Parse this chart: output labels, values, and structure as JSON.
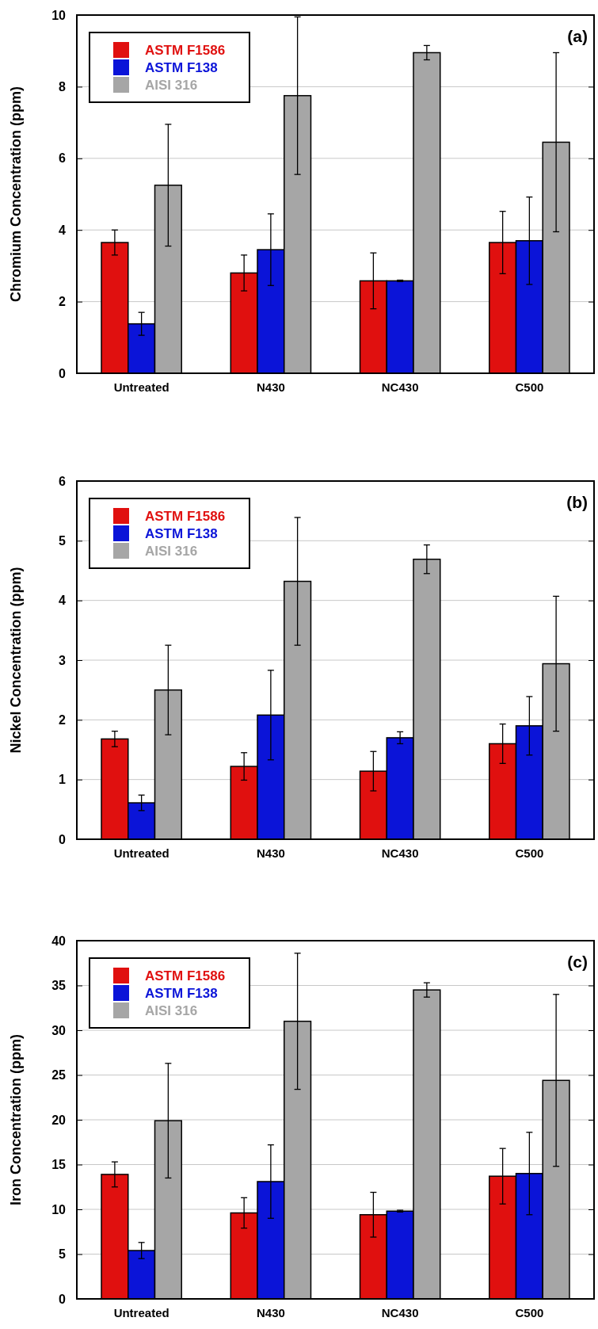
{
  "chart_data": [
    {
      "type": "bar",
      "ylabel": "Chromium Concentration (ppm)",
      "annotations": [
        "(a)"
      ],
      "categories": [
        "Untreated",
        "N430",
        "NC430",
        "C500"
      ],
      "ylim": [
        0,
        10
      ],
      "yticks": [
        0,
        2,
        4,
        6,
        8,
        10
      ],
      "grid": "y",
      "legend": "top left",
      "series": [
        {
          "name": "ASTM F1586",
          "color": "#e0100f",
          "values": [
            3.65,
            2.8,
            2.58,
            3.65
          ],
          "errors": [
            0.35,
            0.5,
            0.78,
            0.87
          ]
        },
        {
          "name": "ASTM F138",
          "color": "#0b14d8",
          "values": [
            1.38,
            3.45,
            2.58,
            3.7
          ],
          "errors": [
            0.32,
            1.0,
            0.02,
            1.22
          ]
        },
        {
          "name": "AISI 316",
          "color": "#a6a6a6",
          "values": [
            5.25,
            7.75,
            8.95,
            6.45
          ],
          "errors": [
            1.7,
            2.2,
            0.2,
            2.5
          ]
        }
      ]
    },
    {
      "type": "bar",
      "ylabel": "Nickel Concentration (ppm)",
      "annotations": [
        "(b)"
      ],
      "categories": [
        "Untreated",
        "N430",
        "NC430",
        "C500"
      ],
      "ylim": [
        0,
        6
      ],
      "yticks": [
        0,
        1,
        2,
        3,
        4,
        5,
        6
      ],
      "grid": "y",
      "legend": "top left",
      "series": [
        {
          "name": "ASTM F1586",
          "color": "#e0100f",
          "values": [
            1.68,
            1.22,
            1.14,
            1.6
          ],
          "errors": [
            0.13,
            0.23,
            0.33,
            0.33
          ]
        },
        {
          "name": "ASTM F138",
          "color": "#0b14d8",
          "values": [
            0.61,
            2.08,
            1.7,
            1.9
          ],
          "errors": [
            0.13,
            0.75,
            0.1,
            0.49
          ]
        },
        {
          "name": "AISI 316",
          "color": "#a6a6a6",
          "values": [
            2.5,
            4.32,
            4.69,
            2.94
          ],
          "errors": [
            0.75,
            1.07,
            0.24,
            1.13
          ]
        }
      ]
    },
    {
      "type": "bar",
      "ylabel": "Iron Concentration (ppm)",
      "annotations": [
        "(c)"
      ],
      "categories": [
        "Untreated",
        "N430",
        "NC430",
        "C500"
      ],
      "ylim": [
        0,
        40
      ],
      "yticks": [
        0,
        5,
        10,
        15,
        20,
        25,
        30,
        35,
        40
      ],
      "grid": "y",
      "legend": "top left",
      "series": [
        {
          "name": "ASTM F1586",
          "color": "#e0100f",
          "values": [
            13.9,
            9.6,
            9.4,
            13.7
          ],
          "errors": [
            1.4,
            1.7,
            2.5,
            3.1
          ]
        },
        {
          "name": "ASTM F138",
          "color": "#0b14d8",
          "values": [
            5.4,
            13.1,
            9.8,
            14.0
          ],
          "errors": [
            0.9,
            4.1,
            0.1,
            4.6
          ]
        },
        {
          "name": "AISI 316",
          "color": "#a6a6a6",
          "values": [
            19.9,
            31.0,
            34.5,
            24.4
          ],
          "errors": [
            6.4,
            7.6,
            0.8,
            9.6
          ]
        }
      ]
    }
  ]
}
